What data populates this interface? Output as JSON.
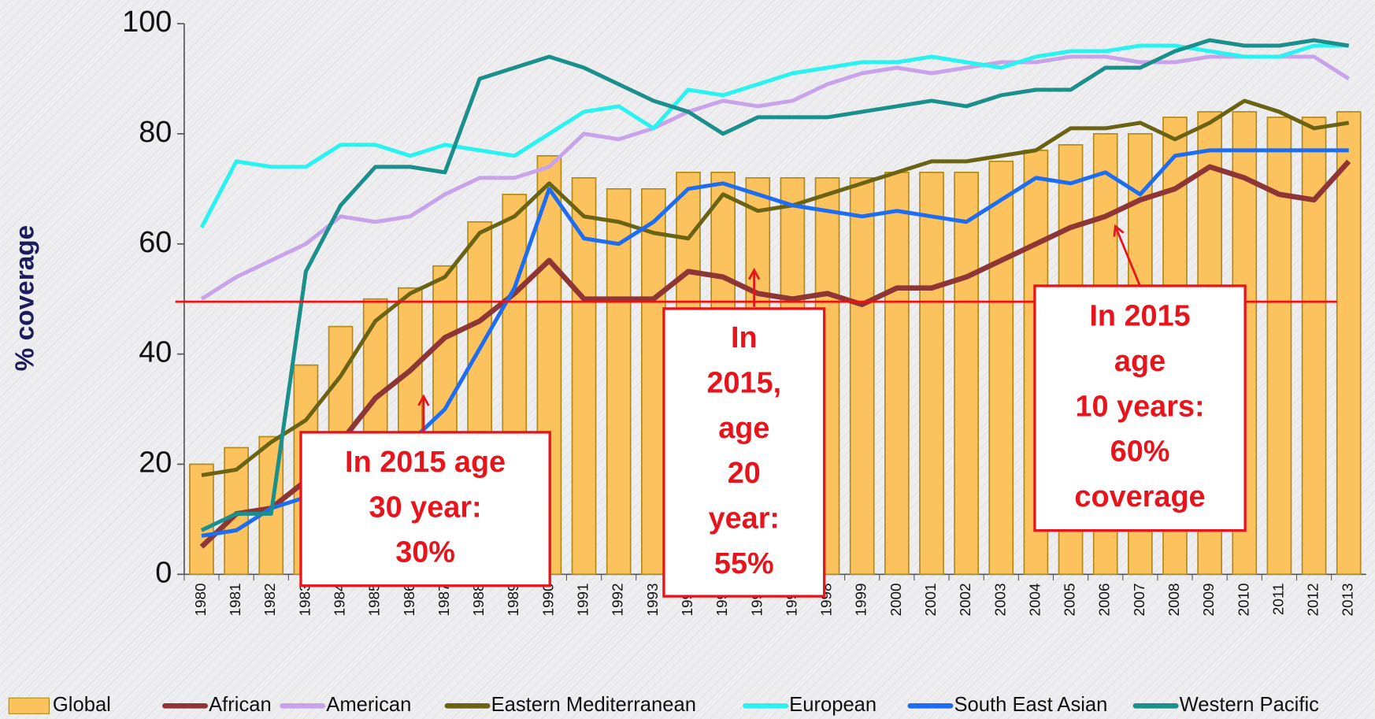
{
  "chart_data": {
    "type": "bar-line",
    "y_label": "% coverage",
    "categories": [
      "1980",
      "1981",
      "1982",
      "1983",
      "1984",
      "1985",
      "1986",
      "1987",
      "1988",
      "1989",
      "1990",
      "1991",
      "1992",
      "1993",
      "1994",
      "1995",
      "1996",
      "1997",
      "1998",
      "1999",
      "2000",
      "2001",
      "2002",
      "2003",
      "2004",
      "2005",
      "2006",
      "2007",
      "2008",
      "2009",
      "2010",
      "2011",
      "2012",
      "2013"
    ],
    "ylim": [
      0,
      100
    ],
    "yticks": [
      0,
      20,
      40,
      60,
      80,
      100
    ],
    "reference_line": 49.5,
    "series": [
      {
        "name": "Global",
        "type": "bar",
        "color": "#fcc25d",
        "values": [
          20,
          23,
          25,
          38,
          45,
          50,
          52,
          56,
          64,
          69,
          76,
          72,
          70,
          70,
          73,
          73,
          72,
          72,
          72,
          72,
          73,
          73,
          73,
          75,
          77,
          78,
          80,
          80,
          83,
          84,
          84,
          83,
          83,
          84
        ]
      },
      {
        "name": "African",
        "type": "line",
        "color": "#8e3535",
        "values": [
          5,
          11,
          12,
          17,
          24,
          32,
          37,
          43,
          46,
          51,
          57,
          50,
          50,
          50,
          55,
          54,
          51,
          50,
          51,
          49,
          52,
          52,
          54,
          57,
          60,
          63,
          65,
          68,
          70,
          74,
          72,
          69,
          68,
          75
        ]
      },
      {
        "name": "American",
        "type": "line",
        "color": "#c9a3ea",
        "values": [
          50,
          54,
          57,
          60,
          65,
          64,
          65,
          69,
          72,
          72,
          74,
          80,
          79,
          81,
          84,
          86,
          85,
          86,
          89,
          91,
          92,
          91,
          92,
          93,
          93,
          94,
          94,
          93,
          93,
          94,
          94,
          94,
          94,
          90
        ]
      },
      {
        "name": "Eastern Mediterranean",
        "type": "line",
        "color": "#6b6314",
        "values": [
          18,
          19,
          24,
          28,
          36,
          46,
          51,
          54,
          62,
          65,
          71,
          65,
          64,
          62,
          61,
          69,
          66,
          67,
          69,
          71,
          73,
          75,
          75,
          76,
          77,
          81,
          81,
          82,
          79,
          82,
          86,
          84,
          81,
          82
        ]
      },
      {
        "name": "European",
        "type": "line",
        "color": "#2af2f0",
        "values": [
          63,
          75,
          74,
          74,
          78,
          78,
          76,
          78,
          77,
          76,
          80,
          84,
          85,
          81,
          88,
          87,
          89,
          91,
          92,
          93,
          93,
          94,
          93,
          92,
          94,
          95,
          95,
          96,
          96,
          95,
          94,
          94,
          96,
          96
        ]
      },
      {
        "name": "South East Asian",
        "type": "line",
        "color": "#1e6df0",
        "values": [
          7,
          8,
          12,
          14,
          16,
          20,
          24,
          30,
          41,
          52,
          70,
          61,
          60,
          64,
          70,
          71,
          69,
          67,
          66,
          65,
          66,
          65,
          64,
          68,
          72,
          71,
          73,
          69,
          76,
          77,
          77,
          77,
          77,
          77
        ]
      },
      {
        "name": "Western Pacific",
        "type": "line",
        "color": "#1a8f8c",
        "values": [
          8,
          11,
          11,
          55,
          67,
          74,
          74,
          73,
          90,
          92,
          94,
          92,
          89,
          86,
          84,
          80,
          83,
          83,
          83,
          84,
          85,
          86,
          85,
          87,
          88,
          88,
          92,
          92,
          95,
          97,
          96,
          96,
          97,
          96
        ]
      }
    ],
    "annotations": [
      {
        "lines": [
          "In 2015 age",
          "30 year:",
          "30%"
        ]
      },
      {
        "lines": [
          "In",
          "2015,",
          "age",
          "20",
          "year:",
          "55%"
        ]
      },
      {
        "lines": [
          "In 2015",
          "age",
          "10 years:",
          "60%",
          "coverage"
        ]
      }
    ]
  }
}
